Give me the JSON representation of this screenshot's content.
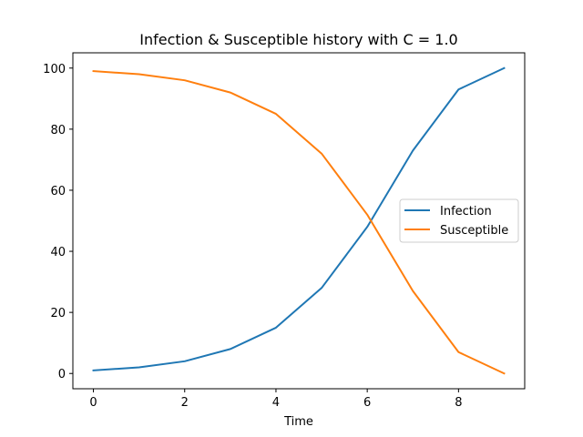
{
  "chart_data": {
    "type": "line",
    "title": "Infection & Susceptible history with C = 1.0",
    "xlabel": "Time",
    "ylabel": "",
    "x": [
      0,
      1,
      2,
      3,
      4,
      5,
      6,
      7,
      8,
      9
    ],
    "xlim": [
      -0.45,
      9.45
    ],
    "ylim": [
      -5,
      105
    ],
    "xticks": [
      0,
      2,
      4,
      6,
      8
    ],
    "yticks": [
      0,
      20,
      40,
      60,
      80,
      100
    ],
    "grid": false,
    "legend_position": "center-right",
    "series": [
      {
        "name": "Infection",
        "color": "#1f77b4",
        "values": [
          1,
          2,
          4,
          8,
          15,
          28,
          48,
          73,
          93,
          100
        ]
      },
      {
        "name": "Susceptible",
        "color": "#ff7f0e",
        "values": [
          99,
          98,
          96,
          92,
          85,
          72,
          52,
          27,
          7,
          0
        ]
      }
    ]
  }
}
